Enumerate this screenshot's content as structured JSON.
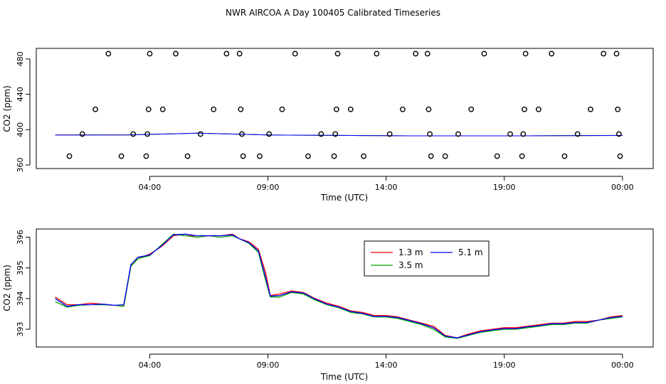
{
  "page": {
    "title": "NWR AIRCOA A  Day 100405  Calibrated Timeseries"
  },
  "chart_data": [
    {
      "type": "scatter",
      "title": "NWR AIRCOA A  Day 100405  Calibrated Timeseries",
      "xlabel": "Time (UTC)",
      "ylabel": "CO2 (ppm)",
      "xlim": [
        -0.8,
        25.3
      ],
      "ylim": [
        356,
        492
      ],
      "x_ticks": [
        4,
        9,
        14,
        19,
        24
      ],
      "x_tick_labels": [
        "04:00",
        "09:00",
        "14:00",
        "19:00",
        "00:00"
      ],
      "y_ticks": [
        360,
        400,
        440,
        480
      ],
      "y_tick_labels": [
        "360",
        "400",
        "440",
        "480"
      ],
      "calibration_points": [
        {
          "x": 0.6,
          "y": 370
        },
        {
          "x": 1.15,
          "y": 395
        },
        {
          "x": 1.7,
          "y": 423
        },
        {
          "x": 2.25,
          "y": 486
        },
        {
          "x": 2.8,
          "y": 370
        },
        {
          "x": 3.3,
          "y": 395
        },
        {
          "x": 3.85,
          "y": 370
        },
        {
          "x": 3.9,
          "y": 395
        },
        {
          "x": 3.95,
          "y": 423
        },
        {
          "x": 4.0,
          "y": 486
        },
        {
          "x": 4.55,
          "y": 423
        },
        {
          "x": 5.1,
          "y": 486
        },
        {
          "x": 5.6,
          "y": 370
        },
        {
          "x": 6.15,
          "y": 395
        },
        {
          "x": 6.7,
          "y": 423
        },
        {
          "x": 7.25,
          "y": 486
        },
        {
          "x": 7.8,
          "y": 486
        },
        {
          "x": 7.85,
          "y": 423
        },
        {
          "x": 7.9,
          "y": 395
        },
        {
          "x": 7.95,
          "y": 370
        },
        {
          "x": 8.65,
          "y": 370
        },
        {
          "x": 9.05,
          "y": 395
        },
        {
          "x": 9.6,
          "y": 423
        },
        {
          "x": 10.15,
          "y": 486
        },
        {
          "x": 10.7,
          "y": 370
        },
        {
          "x": 11.25,
          "y": 395
        },
        {
          "x": 11.8,
          "y": 370
        },
        {
          "x": 11.85,
          "y": 395
        },
        {
          "x": 11.9,
          "y": 423
        },
        {
          "x": 11.95,
          "y": 486
        },
        {
          "x": 12.5,
          "y": 423
        },
        {
          "x": 13.05,
          "y": 370
        },
        {
          "x": 13.6,
          "y": 486
        },
        {
          "x": 14.15,
          "y": 395
        },
        {
          "x": 14.7,
          "y": 423
        },
        {
          "x": 15.25,
          "y": 486
        },
        {
          "x": 15.75,
          "y": 486
        },
        {
          "x": 15.8,
          "y": 423
        },
        {
          "x": 15.85,
          "y": 395
        },
        {
          "x": 15.9,
          "y": 370
        },
        {
          "x": 16.5,
          "y": 370
        },
        {
          "x": 17.05,
          "y": 395
        },
        {
          "x": 17.6,
          "y": 423
        },
        {
          "x": 18.15,
          "y": 486
        },
        {
          "x": 18.7,
          "y": 370
        },
        {
          "x": 19.25,
          "y": 395
        },
        {
          "x": 19.75,
          "y": 370
        },
        {
          "x": 19.8,
          "y": 395
        },
        {
          "x": 19.85,
          "y": 423
        },
        {
          "x": 19.9,
          "y": 486
        },
        {
          "x": 20.45,
          "y": 423
        },
        {
          "x": 21.0,
          "y": 486
        },
        {
          "x": 21.55,
          "y": 370
        },
        {
          "x": 22.1,
          "y": 395
        },
        {
          "x": 22.65,
          "y": 423
        },
        {
          "x": 23.2,
          "y": 486
        },
        {
          "x": 23.75,
          "y": 486
        },
        {
          "x": 23.8,
          "y": 423
        },
        {
          "x": 23.85,
          "y": 395
        },
        {
          "x": 23.9,
          "y": 370
        }
      ],
      "baseline_series": [
        {
          "name": "1.3 m",
          "color": "#ff0000",
          "x": [
            0,
            3,
            6,
            9,
            12,
            15,
            17,
            20,
            24
          ],
          "y": [
            394,
            394,
            396,
            394,
            393.5,
            393,
            393,
            393,
            393.5
          ]
        },
        {
          "name": "3.5 m",
          "color": "#00aa00",
          "x": [
            0,
            3,
            6,
            9,
            12,
            15,
            17,
            20,
            24
          ],
          "y": [
            393.8,
            394,
            396,
            394,
            393.5,
            393,
            393,
            393,
            393.4
          ]
        },
        {
          "name": "5.1 m",
          "color": "#0000ff",
          "x": [
            0,
            3,
            6,
            9,
            12,
            15,
            17,
            20,
            24
          ],
          "y": [
            393.9,
            394,
            396,
            394,
            393.5,
            393,
            393,
            393,
            393.4
          ]
        }
      ]
    },
    {
      "type": "line",
      "xlabel": "Time (UTC)",
      "ylabel": "CO2 (ppm)",
      "xlim": [
        -0.8,
        25.3
      ],
      "ylim": [
        392.42,
        396.27
      ],
      "x_ticks": [
        4,
        9,
        14,
        19,
        24
      ],
      "x_tick_labels": [
        "04:00",
        "09:00",
        "14:00",
        "19:00",
        "00:00"
      ],
      "y_ticks": [
        393,
        394,
        395,
        396
      ],
      "y_tick_labels": [
        "393",
        "394",
        "395",
        "396"
      ],
      "legend": [
        "1.3 m",
        "3.5 m",
        "5.1 m"
      ],
      "legend_position": "top-right",
      "x": [
        0.0,
        0.5,
        1.0,
        1.5,
        2.0,
        2.5,
        2.9,
        3.2,
        3.5,
        4.0,
        4.5,
        5.0,
        5.5,
        6.0,
        6.5,
        7.0,
        7.5,
        7.8,
        8.2,
        8.6,
        8.9,
        9.1,
        9.5,
        10.0,
        10.5,
        11.0,
        11.5,
        12.0,
        12.5,
        13.0,
        13.5,
        14.0,
        14.5,
        15.0,
        15.5,
        16.0,
        16.5,
        17.0,
        17.5,
        18.0,
        18.5,
        19.0,
        19.5,
        20.0,
        20.5,
        21.0,
        21.5,
        22.0,
        22.5,
        23.0,
        23.5,
        24.0
      ],
      "series": [
        {
          "name": "1.3 m",
          "color": "#ff0000",
          "values": [
            394.05,
            393.8,
            393.8,
            393.85,
            393.82,
            393.78,
            393.75,
            395.05,
            395.3,
            395.45,
            395.7,
            396.05,
            396.1,
            396.0,
            396.05,
            396.05,
            396.1,
            395.95,
            395.85,
            395.6,
            394.85,
            394.1,
            394.15,
            394.25,
            394.2,
            394.0,
            393.85,
            393.75,
            393.6,
            393.55,
            393.45,
            393.45,
            393.4,
            393.3,
            393.2,
            393.1,
            392.8,
            392.72,
            392.85,
            392.95,
            393.0,
            393.05,
            393.05,
            393.1,
            393.15,
            393.2,
            393.2,
            393.25,
            393.25,
            393.3,
            393.4,
            393.45
          ]
        },
        {
          "name": "3.5 m",
          "color": "#00aa00",
          "values": [
            393.9,
            393.72,
            393.78,
            393.8,
            393.8,
            393.78,
            393.75,
            395.05,
            395.3,
            395.4,
            395.75,
            396.1,
            396.05,
            396.0,
            396.05,
            396.0,
            396.05,
            395.95,
            395.8,
            395.5,
            394.6,
            394.05,
            394.05,
            394.2,
            394.15,
            393.95,
            393.8,
            393.7,
            393.55,
            393.5,
            393.4,
            393.4,
            393.35,
            393.25,
            393.15,
            393.0,
            392.75,
            392.7,
            392.8,
            392.9,
            392.95,
            393.0,
            393.0,
            393.05,
            393.1,
            393.15,
            393.15,
            393.2,
            393.2,
            393.3,
            393.35,
            393.4
          ]
        },
        {
          "name": "5.1 m",
          "color": "#0000ff",
          "values": [
            394.0,
            393.75,
            393.8,
            393.8,
            393.82,
            393.78,
            393.8,
            395.1,
            395.35,
            395.42,
            395.72,
            396.08,
            396.1,
            396.05,
            396.05,
            396.05,
            396.08,
            395.95,
            395.82,
            395.55,
            394.7,
            394.08,
            394.1,
            394.22,
            394.18,
            393.98,
            393.82,
            393.72,
            393.58,
            393.52,
            393.42,
            393.42,
            393.38,
            393.28,
            393.18,
            393.05,
            392.78,
            392.72,
            392.82,
            392.92,
            392.98,
            393.02,
            393.02,
            393.08,
            393.12,
            393.18,
            393.18,
            393.22,
            393.22,
            393.3,
            393.38,
            393.42
          ]
        }
      ]
    }
  ]
}
